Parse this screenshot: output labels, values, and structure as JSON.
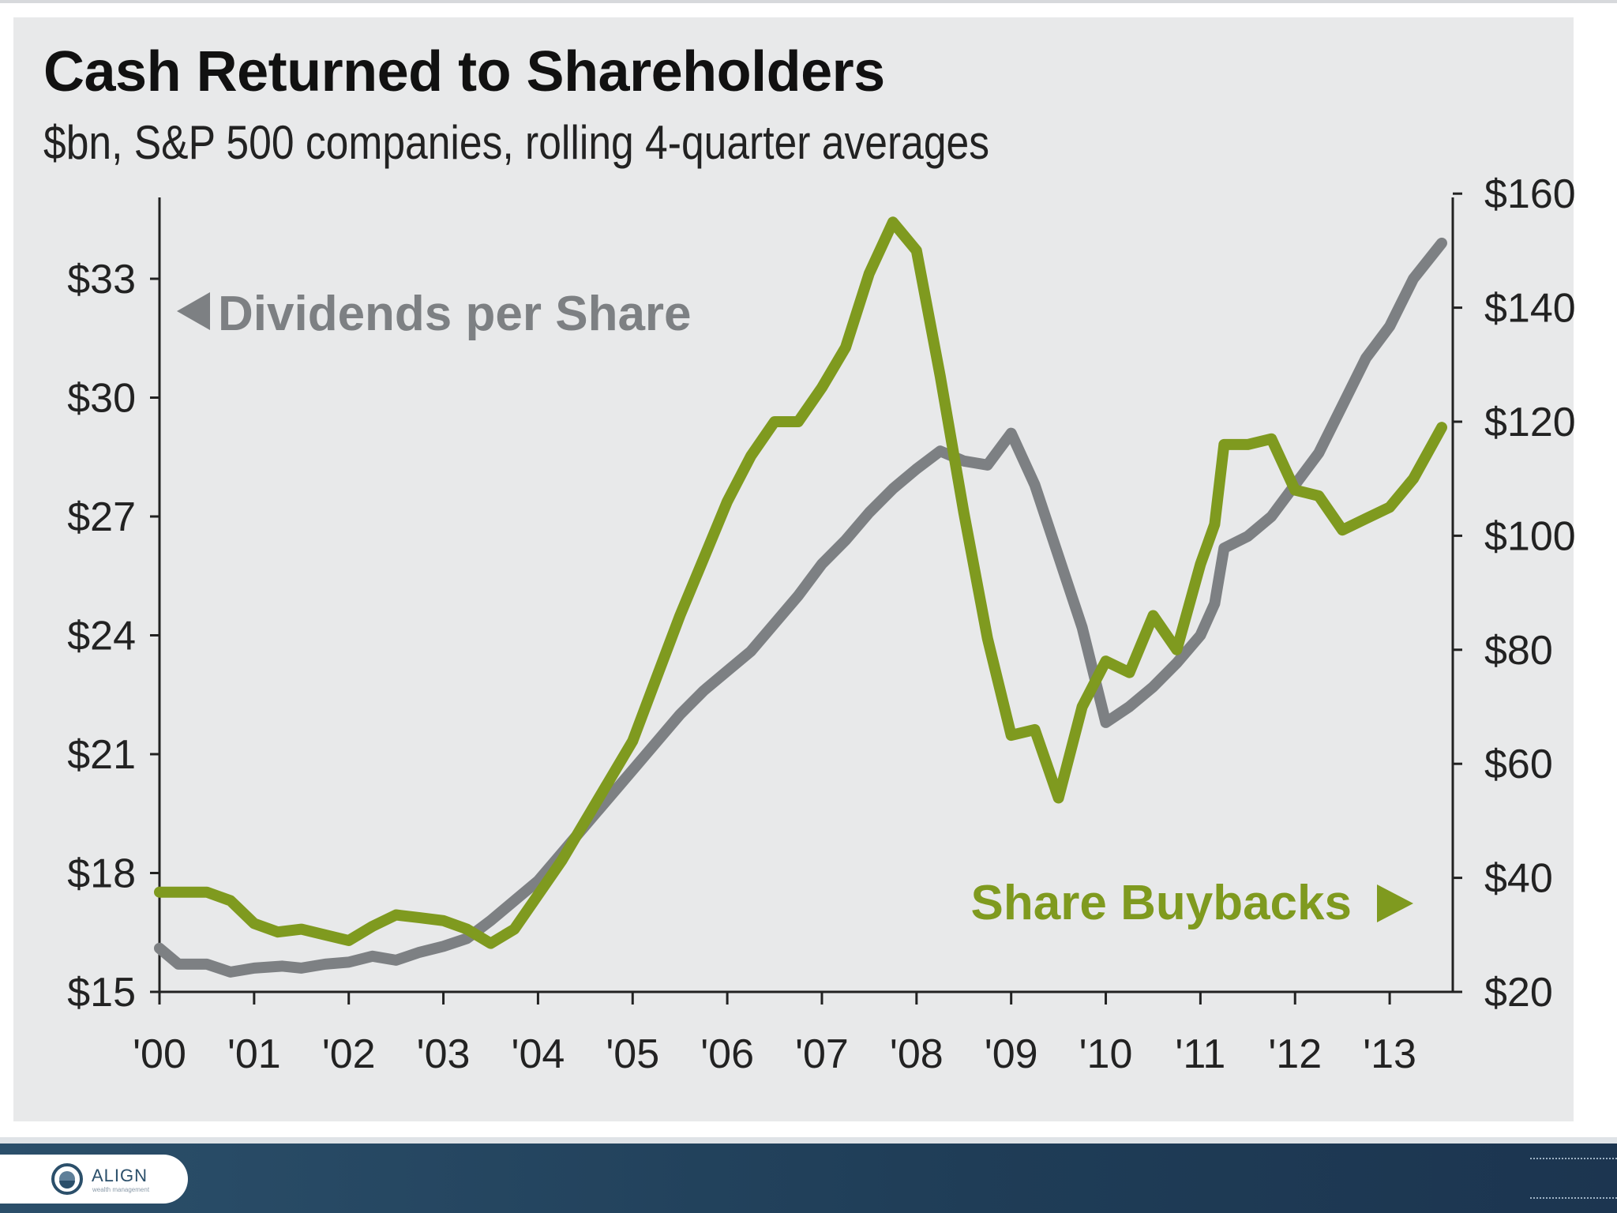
{
  "chart_data": {
    "type": "line",
    "title": "Cash Returned to Shareholders",
    "subtitle": "$bn, S&P 500 companies, rolling 4-quarter averages",
    "x_tick_labels": [
      "'00",
      "'01",
      "'02",
      "'03",
      "'04",
      "'05",
      "'06",
      "'07",
      "'08",
      "'09",
      "'10",
      "'11",
      "'12",
      "'13"
    ],
    "x_range": [
      2000,
      2013.6
    ],
    "y_left": {
      "ticks": [
        15,
        18,
        21,
        24,
        27,
        30,
        33
      ],
      "tick_labels": [
        "$15",
        "$18",
        "$21",
        "$24",
        "$27",
        "$30",
        "$33"
      ],
      "range": [
        15,
        35
      ]
    },
    "y_right": {
      "ticks": [
        20,
        40,
        60,
        80,
        100,
        120,
        140,
        160
      ],
      "tick_labels": [
        "$20",
        "$40",
        "$60",
        "$80",
        "$100",
        "$120",
        "$140",
        "$160"
      ],
      "range": [
        20,
        160
      ]
    },
    "annotations": {
      "dividends": "Dividends per Share",
      "buybacks": "Share Buybacks"
    },
    "series": [
      {
        "name": "Dividends per Share",
        "axis": "left",
        "color": "#7d8083",
        "points": [
          [
            2000.0,
            16.1
          ],
          [
            2000.2,
            15.7
          ],
          [
            2000.5,
            15.7
          ],
          [
            2000.75,
            15.5
          ],
          [
            2001.0,
            15.6
          ],
          [
            2001.3,
            15.65
          ],
          [
            2001.5,
            15.6
          ],
          [
            2001.75,
            15.7
          ],
          [
            2002.0,
            15.75
          ],
          [
            2002.25,
            15.9
          ],
          [
            2002.5,
            15.8
          ],
          [
            2002.75,
            16.0
          ],
          [
            2003.0,
            16.15
          ],
          [
            2003.25,
            16.35
          ],
          [
            2003.5,
            16.8
          ],
          [
            2003.75,
            17.3
          ],
          [
            2004.0,
            17.8
          ],
          [
            2004.25,
            18.5
          ],
          [
            2004.5,
            19.2
          ],
          [
            2004.75,
            19.9
          ],
          [
            2005.0,
            20.6
          ],
          [
            2005.25,
            21.3
          ],
          [
            2005.5,
            22.0
          ],
          [
            2005.75,
            22.6
          ],
          [
            2006.0,
            23.1
          ],
          [
            2006.25,
            23.6
          ],
          [
            2006.5,
            24.3
          ],
          [
            2006.75,
            25.0
          ],
          [
            2007.0,
            25.8
          ],
          [
            2007.25,
            26.4
          ],
          [
            2007.5,
            27.1
          ],
          [
            2007.75,
            27.7
          ],
          [
            2008.0,
            28.2
          ],
          [
            2008.25,
            28.65
          ],
          [
            2008.5,
            28.4
          ],
          [
            2008.75,
            28.3
          ],
          [
            2009.0,
            29.1
          ],
          [
            2009.25,
            27.8
          ],
          [
            2009.5,
            26.0
          ],
          [
            2009.75,
            24.2
          ],
          [
            2010.0,
            21.8
          ],
          [
            2010.25,
            22.2
          ],
          [
            2010.5,
            22.7
          ],
          [
            2010.75,
            23.3
          ],
          [
            2011.0,
            24.0
          ],
          [
            2011.15,
            24.8
          ],
          [
            2011.25,
            26.2
          ],
          [
            2011.5,
            26.5
          ],
          [
            2011.75,
            27.0
          ],
          [
            2012.0,
            27.8
          ],
          [
            2012.25,
            28.6
          ],
          [
            2012.5,
            29.8
          ],
          [
            2012.75,
            31.0
          ],
          [
            2013.0,
            31.8
          ],
          [
            2013.25,
            33.0
          ],
          [
            2013.55,
            33.9
          ]
        ]
      },
      {
        "name": "Share Buybacks",
        "axis": "right",
        "color": "#7f9a1f",
        "points": [
          [
            2000.0,
            37.5
          ],
          [
            2000.25,
            37.5
          ],
          [
            2000.5,
            37.5
          ],
          [
            2000.75,
            36
          ],
          [
            2001.0,
            32
          ],
          [
            2001.25,
            30.5
          ],
          [
            2001.5,
            31
          ],
          [
            2001.75,
            30
          ],
          [
            2002.0,
            29
          ],
          [
            2002.25,
            31.5
          ],
          [
            2002.5,
            33.5
          ],
          [
            2002.75,
            33
          ],
          [
            2003.0,
            32.5
          ],
          [
            2003.25,
            31
          ],
          [
            2003.5,
            28.5
          ],
          [
            2003.75,
            31
          ],
          [
            2004.0,
            37
          ],
          [
            2004.25,
            43
          ],
          [
            2004.5,
            50
          ],
          [
            2004.75,
            57
          ],
          [
            2005.0,
            64
          ],
          [
            2005.25,
            75
          ],
          [
            2005.5,
            86
          ],
          [
            2005.75,
            96
          ],
          [
            2006.0,
            106
          ],
          [
            2006.25,
            114
          ],
          [
            2006.5,
            120
          ],
          [
            2006.75,
            120
          ],
          [
            2007.0,
            126
          ],
          [
            2007.25,
            133
          ],
          [
            2007.5,
            146
          ],
          [
            2007.75,
            155
          ],
          [
            2008.0,
            150
          ],
          [
            2008.25,
            128
          ],
          [
            2008.5,
            104
          ],
          [
            2008.75,
            82
          ],
          [
            2009.0,
            65
          ],
          [
            2009.25,
            66
          ],
          [
            2009.5,
            54
          ],
          [
            2009.75,
            70
          ],
          [
            2010.0,
            78
          ],
          [
            2010.25,
            76
          ],
          [
            2010.5,
            86
          ],
          [
            2010.75,
            80
          ],
          [
            2011.0,
            95
          ],
          [
            2011.15,
            102
          ],
          [
            2011.25,
            116
          ],
          [
            2011.5,
            116
          ],
          [
            2011.75,
            117
          ],
          [
            2012.0,
            108
          ],
          [
            2012.25,
            107
          ],
          [
            2012.5,
            101
          ],
          [
            2012.75,
            103
          ],
          [
            2013.0,
            105
          ],
          [
            2013.25,
            110
          ],
          [
            2013.55,
            119
          ]
        ]
      }
    ]
  },
  "footer": {
    "logo_text": "ALIGN",
    "logo_tagline": "wealth management"
  }
}
